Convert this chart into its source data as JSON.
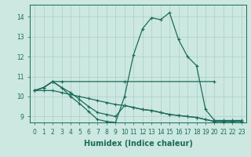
{
  "title": "",
  "xlabel": "Humidex (Indice chaleur)",
  "xlim": [
    -0.5,
    23.5
  ],
  "ylim": [
    8.7,
    14.6
  ],
  "yticks": [
    9,
    10,
    11,
    12,
    13,
    14
  ],
  "xticks": [
    0,
    1,
    2,
    3,
    4,
    5,
    6,
    7,
    8,
    9,
    10,
    11,
    12,
    13,
    14,
    15,
    16,
    17,
    18,
    19,
    20,
    21,
    22,
    23
  ],
  "bg_color": "#cce8e0",
  "line_color": "#1a6b5a",
  "grid_color": "#aacfc8",
  "lines": [
    {
      "x": [
        0,
        1,
        2,
        3,
        4,
        5,
        6,
        7,
        8,
        9,
        10,
        11,
        12,
        13,
        14,
        15,
        16,
        17,
        18,
        19,
        20,
        21,
        22,
        23
      ],
      "y": [
        10.3,
        10.45,
        10.75,
        10.45,
        10.0,
        9.65,
        9.25,
        8.85,
        8.75,
        8.7,
        10.0,
        12.1,
        13.4,
        13.95,
        13.85,
        14.2,
        12.85,
        12.0,
        11.55,
        9.35,
        8.8,
        8.8,
        8.8,
        8.8
      ]
    },
    {
      "x": [
        0,
        1,
        2,
        3,
        10,
        20
      ],
      "y": [
        10.3,
        10.45,
        10.75,
        10.75,
        10.75,
        10.75
      ]
    },
    {
      "x": [
        0,
        1,
        2,
        3,
        4,
        5,
        6,
        7,
        8,
        9,
        10,
        11,
        12,
        13,
        14,
        15,
        16,
        17,
        18,
        19,
        20,
        21,
        22,
        23
      ],
      "y": [
        10.3,
        10.3,
        10.3,
        10.2,
        10.1,
        10.0,
        9.9,
        9.8,
        9.7,
        9.6,
        9.55,
        9.45,
        9.35,
        9.3,
        9.2,
        9.1,
        9.05,
        9.0,
        8.95,
        8.85,
        8.75,
        8.75,
        8.75,
        8.75
      ]
    },
    {
      "x": [
        0,
        1,
        2,
        3,
        4,
        5,
        6,
        7,
        8,
        9,
        10,
        11,
        12,
        13,
        14,
        15,
        16,
        17,
        18,
        19,
        20,
        21,
        22,
        23
      ],
      "y": [
        10.3,
        10.45,
        10.75,
        10.45,
        10.2,
        9.85,
        9.5,
        9.2,
        9.1,
        9.0,
        9.55,
        9.45,
        9.35,
        9.3,
        9.2,
        9.1,
        9.05,
        9.0,
        8.95,
        8.85,
        8.75,
        8.75,
        8.75,
        8.75
      ]
    }
  ],
  "tick_fontsize": 5.5,
  "label_fontsize": 7
}
